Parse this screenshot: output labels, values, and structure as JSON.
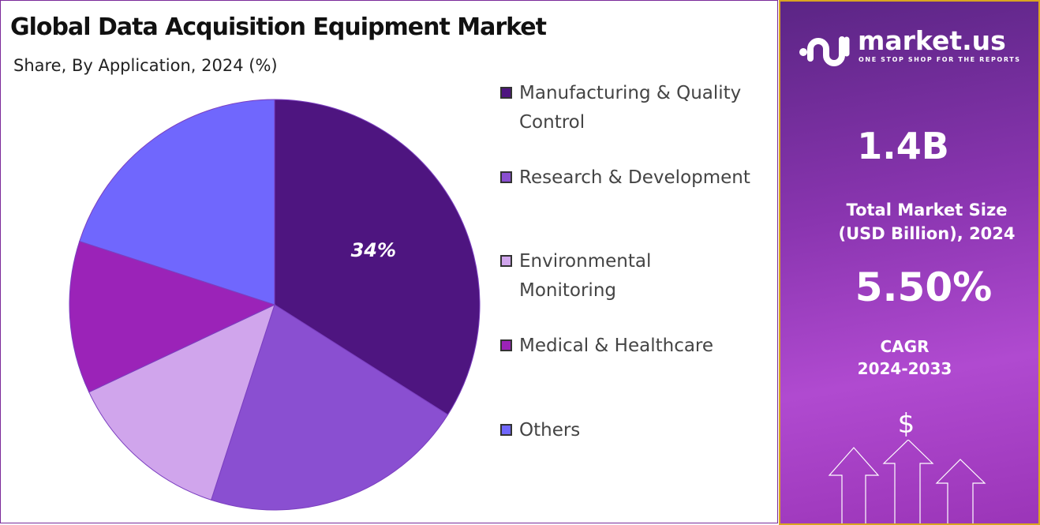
{
  "header": {
    "title": "Global Data Acquisition Equipment Market",
    "subtitle": "Share, By Application, 2024 (%)"
  },
  "chart_data": {
    "type": "pie",
    "categories": [
      "Manufacturing & Quality Control",
      "Research & Development",
      "Environmental Monitoring",
      "Medical & Healthcare",
      "Others"
    ],
    "values": [
      34,
      21,
      13,
      12,
      20
    ],
    "colors": [
      "#4e1580",
      "#8a4fd1",
      "#d0a5ec",
      "#9b23b8",
      "#7067fd"
    ],
    "data_labels": [
      "34%",
      "",
      "",
      "",
      ""
    ],
    "legend_position": "right"
  },
  "legend": [
    "Manufacturing & Quality Control",
    "Research & Development",
    "Environmental Monitoring",
    "Medical & Healthcare",
    "Others"
  ],
  "panel": {
    "brand": "market.us",
    "tagline": "ONE STOP SHOP FOR THE REPORTS",
    "market_size": "1.4B",
    "market_size_label_1": "Total Market Size",
    "market_size_label_2": "(USD Billion), 2024",
    "cagr": "5.50%",
    "cagr_label": "CAGR",
    "cagr_period": "2024-2033",
    "dollar": "$"
  }
}
